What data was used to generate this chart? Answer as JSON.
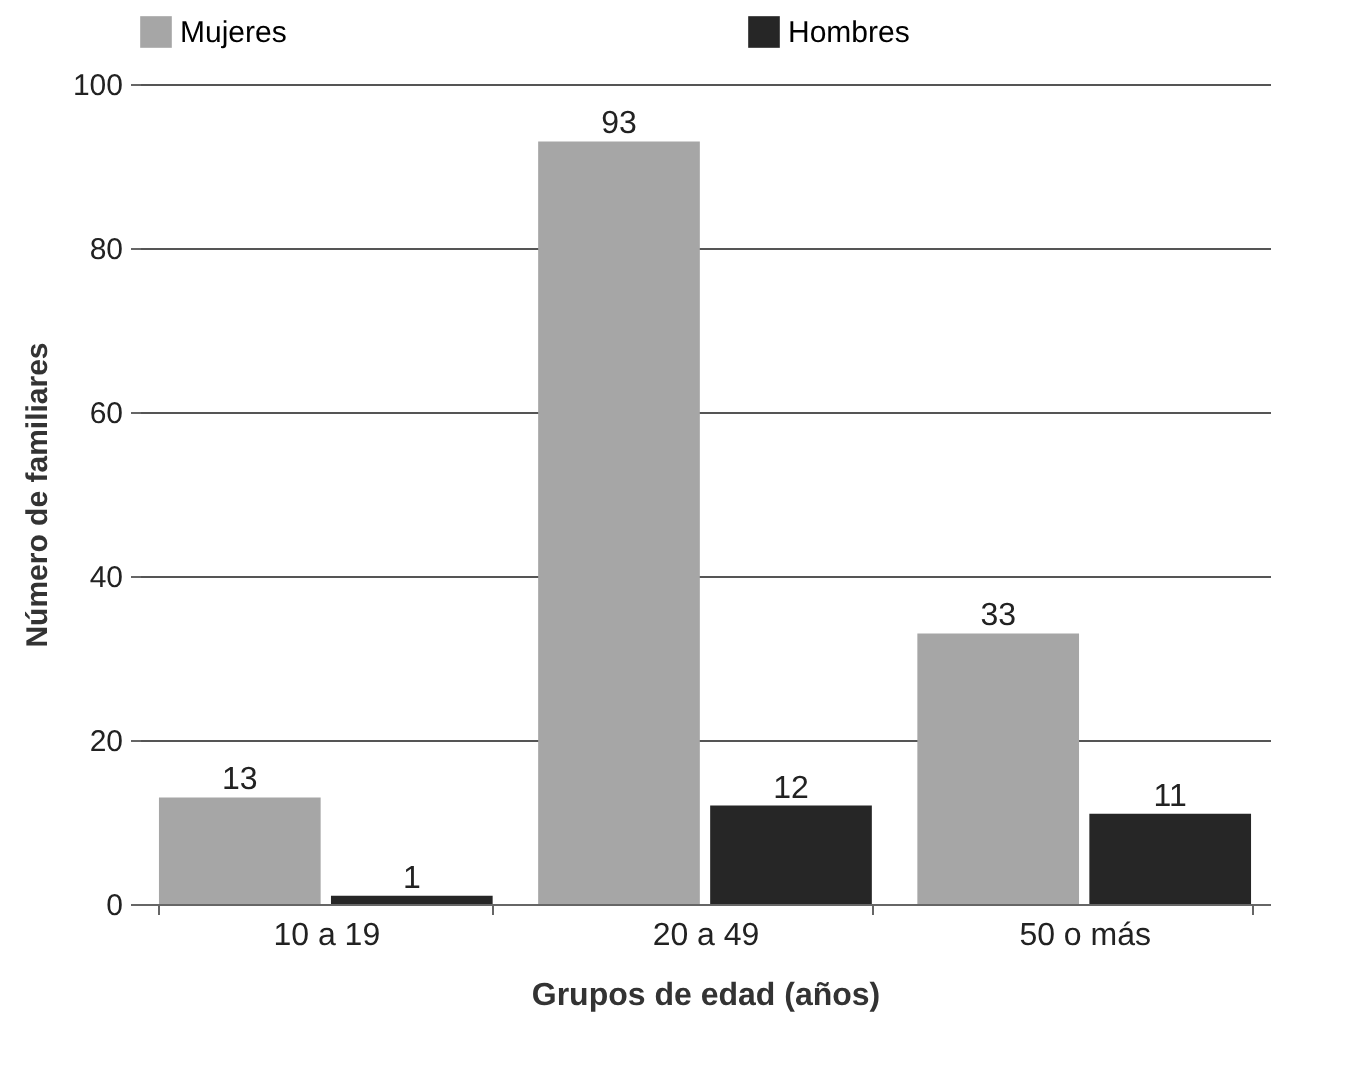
{
  "chart_data": {
    "type": "bar",
    "xlabel": "Grupos de edad (años)",
    "ylabel": "Número de familiares",
    "categories": [
      "10 a 19",
      "20 a 49",
      "50 o más"
    ],
    "series": [
      {
        "name": "Mujeres",
        "color": "#a6a6a6",
        "values": [
          13,
          93,
          33
        ]
      },
      {
        "name": "Hombres",
        "color": "#262626",
        "values": [
          1,
          12,
          11
        ]
      }
    ],
    "ylim": [
      0,
      100
    ],
    "yticks": [
      0,
      20,
      40,
      60,
      80,
      100
    ],
    "grid": "y",
    "legend": "top",
    "data_labels": true
  }
}
